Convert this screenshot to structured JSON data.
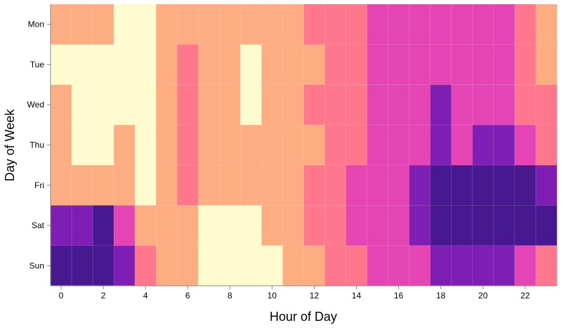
{
  "chart_data": {
    "type": "heatmap",
    "title": "",
    "xlabel": "Hour of Day",
    "ylabel": "Day of Week",
    "x": [
      0,
      1,
      2,
      3,
      4,
      5,
      6,
      7,
      8,
      9,
      10,
      11,
      12,
      13,
      14,
      15,
      16,
      17,
      18,
      19,
      20,
      21,
      22,
      23
    ],
    "x_tick_labels": [
      "0",
      "2",
      "4",
      "6",
      "8",
      "10",
      "12",
      "14",
      "16",
      "18",
      "20",
      "22"
    ],
    "y": [
      "Mon",
      "Tue",
      "Wed",
      "Thu",
      "Fri",
      "Sat",
      "Sun"
    ],
    "color_scale": "magma (reversed): light = low, dark = high",
    "color_levels": [
      "#fefccf",
      "#feac82",
      "#fe778c",
      "#e544b4",
      "#7f1eb4",
      "#481890"
    ],
    "values": [
      [
        1,
        1,
        1,
        0,
        0,
        1,
        1,
        1,
        1,
        1,
        1,
        1,
        2,
        2,
        2,
        3,
        3,
        3,
        3,
        3,
        3,
        3,
        2,
        1
      ],
      [
        0,
        0,
        0,
        0,
        0,
        1,
        2,
        1,
        1,
        0,
        1,
        1,
        1,
        2,
        2,
        3,
        3,
        3,
        3,
        3,
        3,
        3,
        2,
        1
      ],
      [
        1,
        0,
        0,
        0,
        0,
        1,
        2,
        1,
        1,
        0,
        1,
        1,
        2,
        2,
        2,
        3,
        3,
        3,
        4,
        3,
        3,
        3,
        2,
        2
      ],
      [
        1,
        0,
        0,
        1,
        0,
        1,
        2,
        1,
        1,
        1,
        1,
        1,
        1,
        2,
        2,
        3,
        3,
        3,
        4,
        3,
        4,
        4,
        3,
        2
      ],
      [
        1,
        1,
        1,
        1,
        0,
        1,
        2,
        1,
        1,
        1,
        1,
        1,
        2,
        2,
        3,
        3,
        3,
        4,
        5,
        5,
        5,
        5,
        5,
        4
      ],
      [
        4,
        4,
        5,
        3,
        1,
        1,
        1,
        0,
        0,
        0,
        1,
        1,
        2,
        2,
        3,
        3,
        3,
        4,
        5,
        5,
        5,
        5,
        5,
        5
      ],
      [
        5,
        5,
        5,
        4,
        2,
        1,
        1,
        0,
        0,
        0,
        0,
        1,
        1,
        2,
        2,
        3,
        3,
        3,
        4,
        4,
        4,
        4,
        3,
        2
      ]
    ],
    "legend": "none"
  }
}
